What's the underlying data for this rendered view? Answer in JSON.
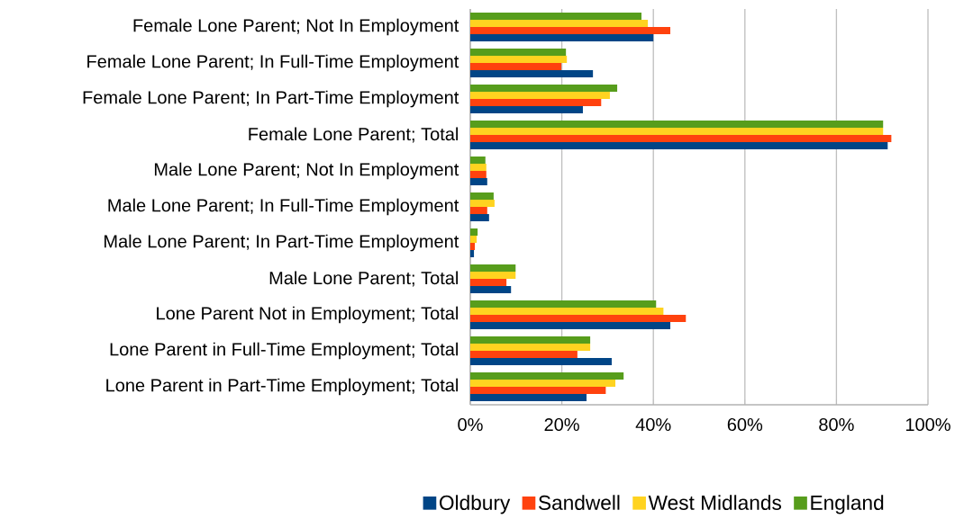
{
  "chart_data": {
    "type": "bar",
    "orientation": "horizontal",
    "categories": [
      "Female Lone Parent; Not In Employment",
      "Female Lone Parent; In Full-Time Employment",
      "Female Lone Parent; In Part-Time Employment",
      "Female Lone Parent; Total",
      "Male Lone Parent; Not In Employment",
      "Male Lone Parent; In Full-Time Employment",
      "Male Lone Parent; In Part-Time Employment",
      "Male Lone Parent; Total",
      "Lone Parent Not in Employment; Total",
      "Lone Parent in Full-Time Employment; Total",
      "Lone Parent in Part-Time Employment; Total"
    ],
    "series": [
      {
        "name": "Oldbury",
        "color": "#004586",
        "values": [
          40.0,
          26.8,
          24.6,
          91.2,
          3.7,
          4.1,
          0.8,
          8.9,
          43.7,
          30.9,
          25.4
        ]
      },
      {
        "name": "Sandwell",
        "color": "#ff420e",
        "values": [
          43.7,
          19.9,
          28.6,
          92.0,
          3.5,
          3.7,
          1.0,
          7.9,
          47.1,
          23.4,
          29.6
        ]
      },
      {
        "name": "West Midlands",
        "color": "#ffd320",
        "values": [
          38.8,
          21.1,
          30.5,
          90.2,
          3.5,
          5.3,
          1.4,
          9.9,
          42.2,
          26.2,
          31.7
        ]
      },
      {
        "name": "England",
        "color": "#579d1c",
        "values": [
          37.4,
          20.9,
          32.1,
          90.2,
          3.3,
          5.1,
          1.6,
          9.9,
          40.6,
          26.2,
          33.5
        ]
      }
    ],
    "xlim": [
      0,
      100
    ],
    "xticks": [
      {
        "value": 0,
        "label": "0%"
      },
      {
        "value": 20,
        "label": "20%"
      },
      {
        "value": 40,
        "label": "40%"
      },
      {
        "value": 60,
        "label": "60%"
      },
      {
        "value": 80,
        "label": "80%"
      },
      {
        "value": 100,
        "label": "100%"
      }
    ],
    "grid": "x",
    "legend": "bottom"
  }
}
